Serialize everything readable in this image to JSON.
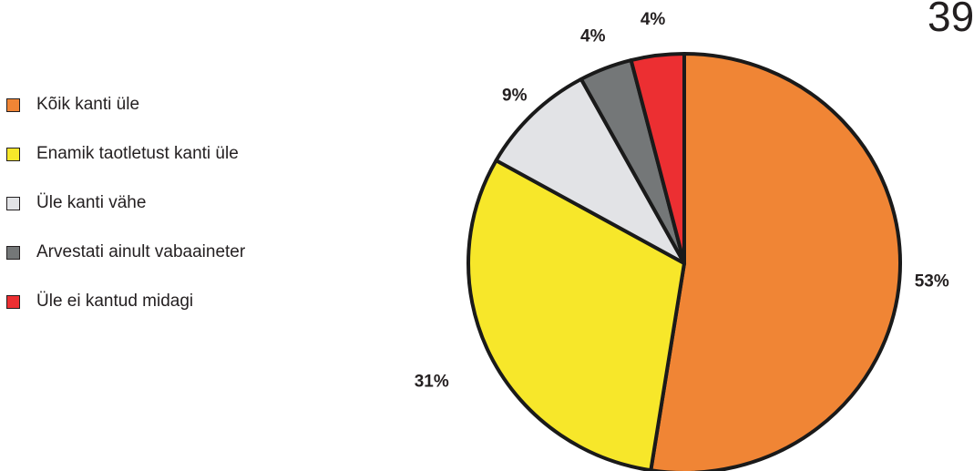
{
  "page_number": "39",
  "chart_data": {
    "type": "pie",
    "title": "",
    "categories": [
      "Kõik kanti üle",
      "Enamik taotletust kanti üle",
      "Üle kanti vähe",
      "Arvestati ainult vabaaineter",
      "Üle ei kantud midagi"
    ],
    "values": [
      53,
      31,
      9,
      4,
      4
    ],
    "data_labels": [
      "53%",
      "31%",
      "9%",
      "4%",
      "4%"
    ],
    "colors": [
      "#f08535",
      "#f7e72a",
      "#e2e3e6",
      "#747778",
      "#ec2f32"
    ],
    "legend_position": "left",
    "start_angle": "12 o'clock",
    "direction": "clockwise"
  }
}
